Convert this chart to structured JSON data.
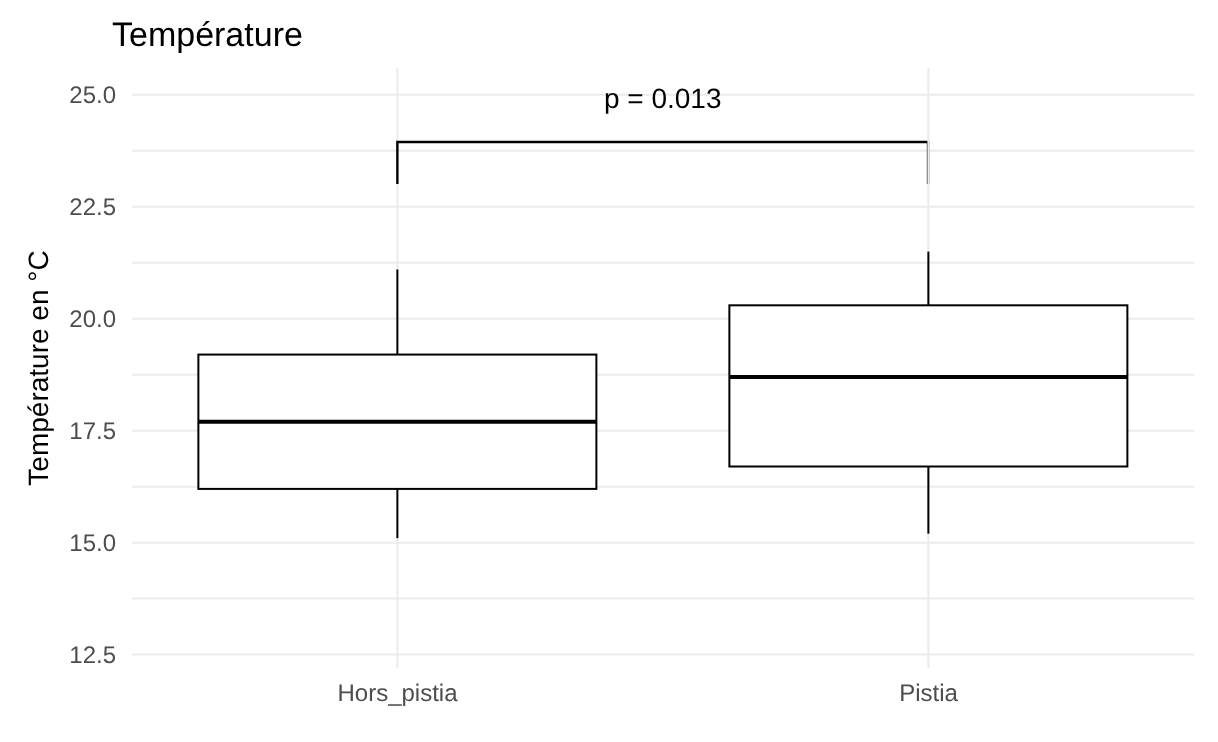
{
  "chart_data": {
    "type": "box",
    "title": "Température",
    "ylabel": "Température en °C",
    "categories": [
      "Hors_pistia",
      "Pistia"
    ],
    "boxes": [
      {
        "low": 15.1,
        "q1": 16.2,
        "median": 17.7,
        "q3": 19.2,
        "high": 21.1
      },
      {
        "low": 15.2,
        "q1": 16.7,
        "median": 18.7,
        "q3": 20.3,
        "high": 21.5
      }
    ],
    "color": "#000000",
    "ylim": [
      12.2,
      25.6
    ],
    "yticks": [
      12.5,
      {
        "value": 15,
        "label": "15.0"
      },
      17.5,
      {
        "value": 20,
        "label": "20.0"
      },
      22.5,
      {
        "value": 25,
        "label": "25.0"
      }
    ],
    "grid": true,
    "annotations": [
      "p = 0.013"
    ]
  }
}
